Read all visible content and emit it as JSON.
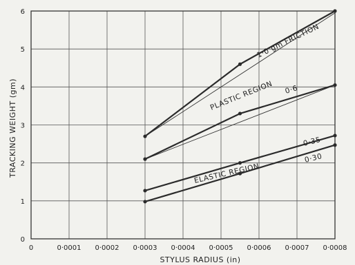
{
  "chart_data": {
    "type": "line",
    "title": "",
    "xlabel": "STYLUS RADIUS (in)",
    "ylabel": "TRACKING WEIGHT (gm)",
    "xlim": [
      0,
      0.0008
    ],
    "ylim": [
      0,
      6
    ],
    "grid": true,
    "x_ticks": [
      "0",
      "0·0001",
      "0·0002",
      "0·0003",
      "0·0004",
      "0·0005",
      "0·0006",
      "0·0007",
      "0·0008"
    ],
    "y_ticks": [
      "0",
      "1",
      "2",
      "3",
      "4",
      "5",
      "6"
    ],
    "series": [
      {
        "name": "1·0 gm FRICTION",
        "x": [
          0.0003,
          0.00055,
          0.0008
        ],
        "y": [
          2.7,
          4.6,
          6.0
        ]
      },
      {
        "name": "0·6",
        "x": [
          0.0003,
          0.00055,
          0.0008
        ],
        "y": [
          2.1,
          3.3,
          4.05
        ]
      },
      {
        "name": "0·35",
        "x": [
          0.0003,
          0.00055,
          0.0008
        ],
        "y": [
          1.27,
          2.0,
          2.72
        ]
      },
      {
        "name": "0·30",
        "x": [
          0.0003,
          0.00055,
          0.0008
        ],
        "y": [
          0.98,
          1.72,
          2.47
        ]
      }
    ],
    "boundary_lines": [
      {
        "x": [
          0.0003,
          0.0008
        ],
        "y": [
          2.7,
          5.95
        ]
      },
      {
        "x": [
          0.0003,
          0.0008
        ],
        "y": [
          2.1,
          4.05
        ]
      }
    ],
    "region_labels": [
      "PLASTIC REGION",
      "ELASTIC REGION"
    ]
  }
}
